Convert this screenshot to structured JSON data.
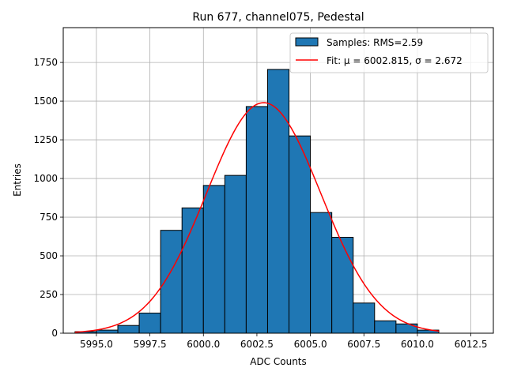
{
  "chart_data": {
    "type": "bar",
    "title": "Run 677, channel075, Pedestal",
    "xlabel": "ADC Counts",
    "ylabel": "Entries",
    "xlim": [
      5993.45,
      6013.55
    ],
    "ylim": [
      0,
      1975
    ],
    "grid": true,
    "legend_placement": "top-right",
    "x_ticks": [
      5995.0,
      5997.5,
      6000.0,
      6002.5,
      6005.0,
      6007.5,
      6010.0,
      6012.5
    ],
    "x_tick_labels": [
      "5995.0",
      "5997.5",
      "6000.0",
      "6002.5",
      "6005.0",
      "6007.5",
      "6010.0",
      "6012.5"
    ],
    "y_ticks": [
      0,
      250,
      500,
      750,
      1000,
      1250,
      1500,
      1750
    ],
    "y_tick_labels": [
      "0",
      "250",
      "500",
      "750",
      "1000",
      "1250",
      "1500",
      "1750"
    ],
    "histogram": {
      "name": "Samples: RMS=2.59",
      "color": "#1f77b4",
      "edge_color": "#000000",
      "bins": [
        {
          "x0": 5994,
          "x1": 5995,
          "value": 10
        },
        {
          "x0": 5995,
          "x1": 5996,
          "value": 20
        },
        {
          "x0": 5996,
          "x1": 5997,
          "value": 50
        },
        {
          "x0": 5997,
          "x1": 5998,
          "value": 130
        },
        {
          "x0": 5998,
          "x1": 5999,
          "value": 665
        },
        {
          "x0": 5999,
          "x1": 6000,
          "value": 810
        },
        {
          "x0": 6000,
          "x1": 6001,
          "value": 955
        },
        {
          "x0": 6001,
          "x1": 6002,
          "value": 1020
        },
        {
          "x0": 6002,
          "x1": 6003,
          "value": 1465
        },
        {
          "x0": 6003,
          "x1": 6004,
          "value": 1705
        },
        {
          "x0": 6004,
          "x1": 6005,
          "value": 1275
        },
        {
          "x0": 6005,
          "x1": 6006,
          "value": 780
        },
        {
          "x0": 6006,
          "x1": 6007,
          "value": 620
        },
        {
          "x0": 6007,
          "x1": 6008,
          "value": 195
        },
        {
          "x0": 6008,
          "x1": 6009,
          "value": 80
        },
        {
          "x0": 6009,
          "x1": 6010,
          "value": 60
        },
        {
          "x0": 6010,
          "x1": 6011,
          "value": 20
        }
      ]
    },
    "fit": {
      "name": "Fit: μ = 6002.815, σ = 2.672",
      "color": "#ff0000",
      "mu": 6002.815,
      "sigma": 2.672,
      "amplitude": 1490,
      "x_range": [
        5994,
        6011
      ]
    }
  }
}
